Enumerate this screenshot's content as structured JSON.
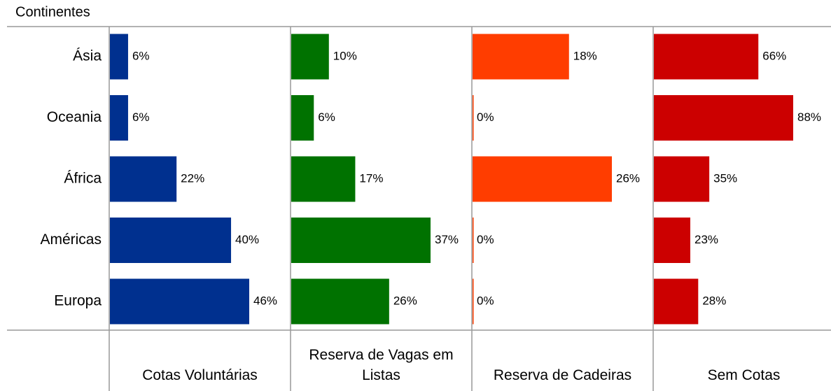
{
  "chart_data": {
    "type": "bar",
    "title": "Continentes",
    "categories": [
      "Ásia",
      "Oceania",
      "África",
      "Américas",
      "Europa"
    ],
    "series": [
      {
        "name": "Cotas Voluntárias",
        "color": "#00308f",
        "values": [
          6,
          6,
          22,
          40,
          46
        ],
        "value_labels": [
          "6%",
          "6%",
          "22%",
          "40%",
          "46%"
        ]
      },
      {
        "name": "Reserva de Vagas em Listas",
        "color": "#007200",
        "values": [
          10,
          6,
          17,
          37,
          26
        ],
        "value_labels": [
          "10%",
          "6%",
          "17%",
          "37%",
          "26%"
        ]
      },
      {
        "name": "Reserva de Cadeiras",
        "color": "#ff3d00",
        "values": [
          18,
          0,
          26,
          0,
          0
        ],
        "value_labels": [
          "18%",
          "0%",
          "26%",
          "0%",
          "0%"
        ]
      },
      {
        "name": "Sem Cotas",
        "color": "#cc0000",
        "values": [
          66,
          88,
          35,
          23,
          28
        ],
        "value_labels": [
          "66%",
          "88%",
          "35%",
          "23%",
          "28%"
        ]
      }
    ]
  }
}
